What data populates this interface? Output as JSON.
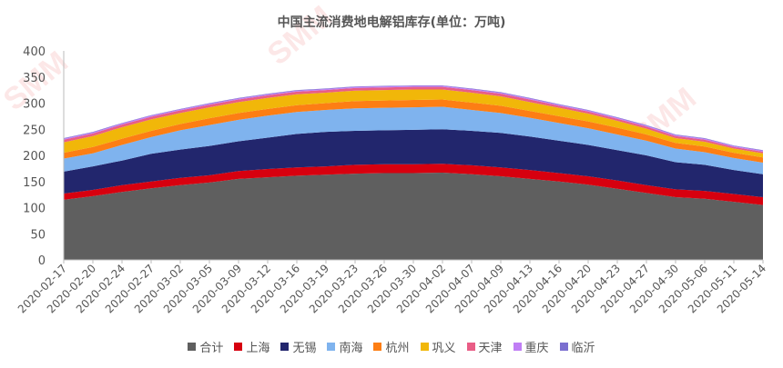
{
  "chart_data": {
    "type": "area",
    "stacked": true,
    "title": "中国主流消费地电解铝库存(单位：万吨)",
    "xlabel": "",
    "ylabel": "",
    "ylim": [
      0,
      400
    ],
    "yticks": [
      0,
      50,
      100,
      150,
      200,
      250,
      300,
      350,
      400
    ],
    "grid": false,
    "legend_position": "bottom",
    "categories": [
      "2020-02-17",
      "2020-02-20",
      "2020-02-24",
      "2020-02-27",
      "2020-03-02",
      "2020-03-05",
      "2020-03-09",
      "2020-03-12",
      "2020-03-16",
      "2020-03-19",
      "2020-03-23",
      "2020-03-26",
      "2020-03-30",
      "2020-04-02",
      "2020-04-07",
      "2020-04-09",
      "2020-04-13",
      "2020-04-16",
      "2020-04-20",
      "2020-04-23",
      "2020-04-27",
      "2020-04-30",
      "2020-05-06",
      "2020-05-11",
      "2020-05-14"
    ],
    "series": [
      {
        "name": "合计",
        "color": "#5f5f5f",
        "values": [
          115,
          122,
          130,
          137,
          143,
          148,
          155,
          158,
          161,
          163,
          165,
          166,
          166,
          167,
          164,
          160,
          155,
          150,
          144,
          136,
          128,
          120,
          117,
          111,
          105
        ]
      },
      {
        "name": "上海",
        "color": "#d7000f",
        "values": [
          12,
          12,
          13,
          13,
          14,
          14,
          15,
          16,
          16,
          16,
          17,
          17,
          17,
          17,
          17,
          17,
          17,
          16,
          16,
          16,
          15,
          15,
          15,
          15,
          15
        ]
      },
      {
        "name": "无锡",
        "color": "#22266d",
        "values": [
          42,
          45,
          47,
          53,
          54,
          56,
          57,
          60,
          64,
          66,
          65,
          65,
          66,
          66,
          66,
          66,
          64,
          62,
          60,
          58,
          57,
          52,
          50,
          46,
          44
        ]
      },
      {
        "name": "南海",
        "color": "#7fb3ee",
        "values": [
          25,
          25,
          30,
          32,
          37,
          40,
          41,
          42,
          42,
          42,
          43,
          43,
          43,
          43,
          40,
          38,
          36,
          34,
          32,
          30,
          28,
          26,
          24,
          23,
          22
        ]
      },
      {
        "name": "杭州",
        "color": "#fd7e14",
        "values": [
          11,
          12,
          12,
          12,
          12,
          13,
          13,
          13,
          13,
          13,
          14,
          14,
          14,
          14,
          14,
          14,
          13,
          13,
          13,
          13,
          12,
          11,
          11,
          10,
          10
        ]
      },
      {
        "name": "巩义",
        "color": "#f1b709",
        "values": [
          20,
          21,
          22,
          22,
          21,
          21,
          21,
          21,
          21,
          20,
          20,
          20,
          20,
          19,
          19,
          18,
          17,
          16,
          15,
          13,
          11,
          9,
          9,
          8,
          8
        ]
      },
      {
        "name": "天津",
        "color": "#e95d86",
        "values": [
          5,
          5,
          5,
          5,
          5,
          5,
          5,
          5,
          5,
          5,
          5,
          5,
          5,
          5,
          5,
          5,
          5,
          4,
          4,
          4,
          4,
          4,
          4,
          3,
          3
        ]
      },
      {
        "name": "重庆",
        "color": "#c07ef5",
        "values": [
          2,
          2,
          2,
          2,
          2,
          2,
          2,
          2,
          2,
          2,
          2,
          2,
          2,
          2,
          2,
          2,
          2,
          2,
          2,
          2,
          2,
          2,
          2,
          2,
          2
        ]
      },
      {
        "name": "临沂",
        "color": "#7b6fd0",
        "values": [
          1,
          1,
          1,
          1,
          1,
          1,
          1,
          1,
          1,
          1,
          1,
          1,
          1,
          1,
          1,
          1,
          1,
          1,
          1,
          1,
          1,
          1,
          1,
          1,
          1
        ]
      }
    ]
  },
  "watermark": "SMM Shanghai Metals Market"
}
